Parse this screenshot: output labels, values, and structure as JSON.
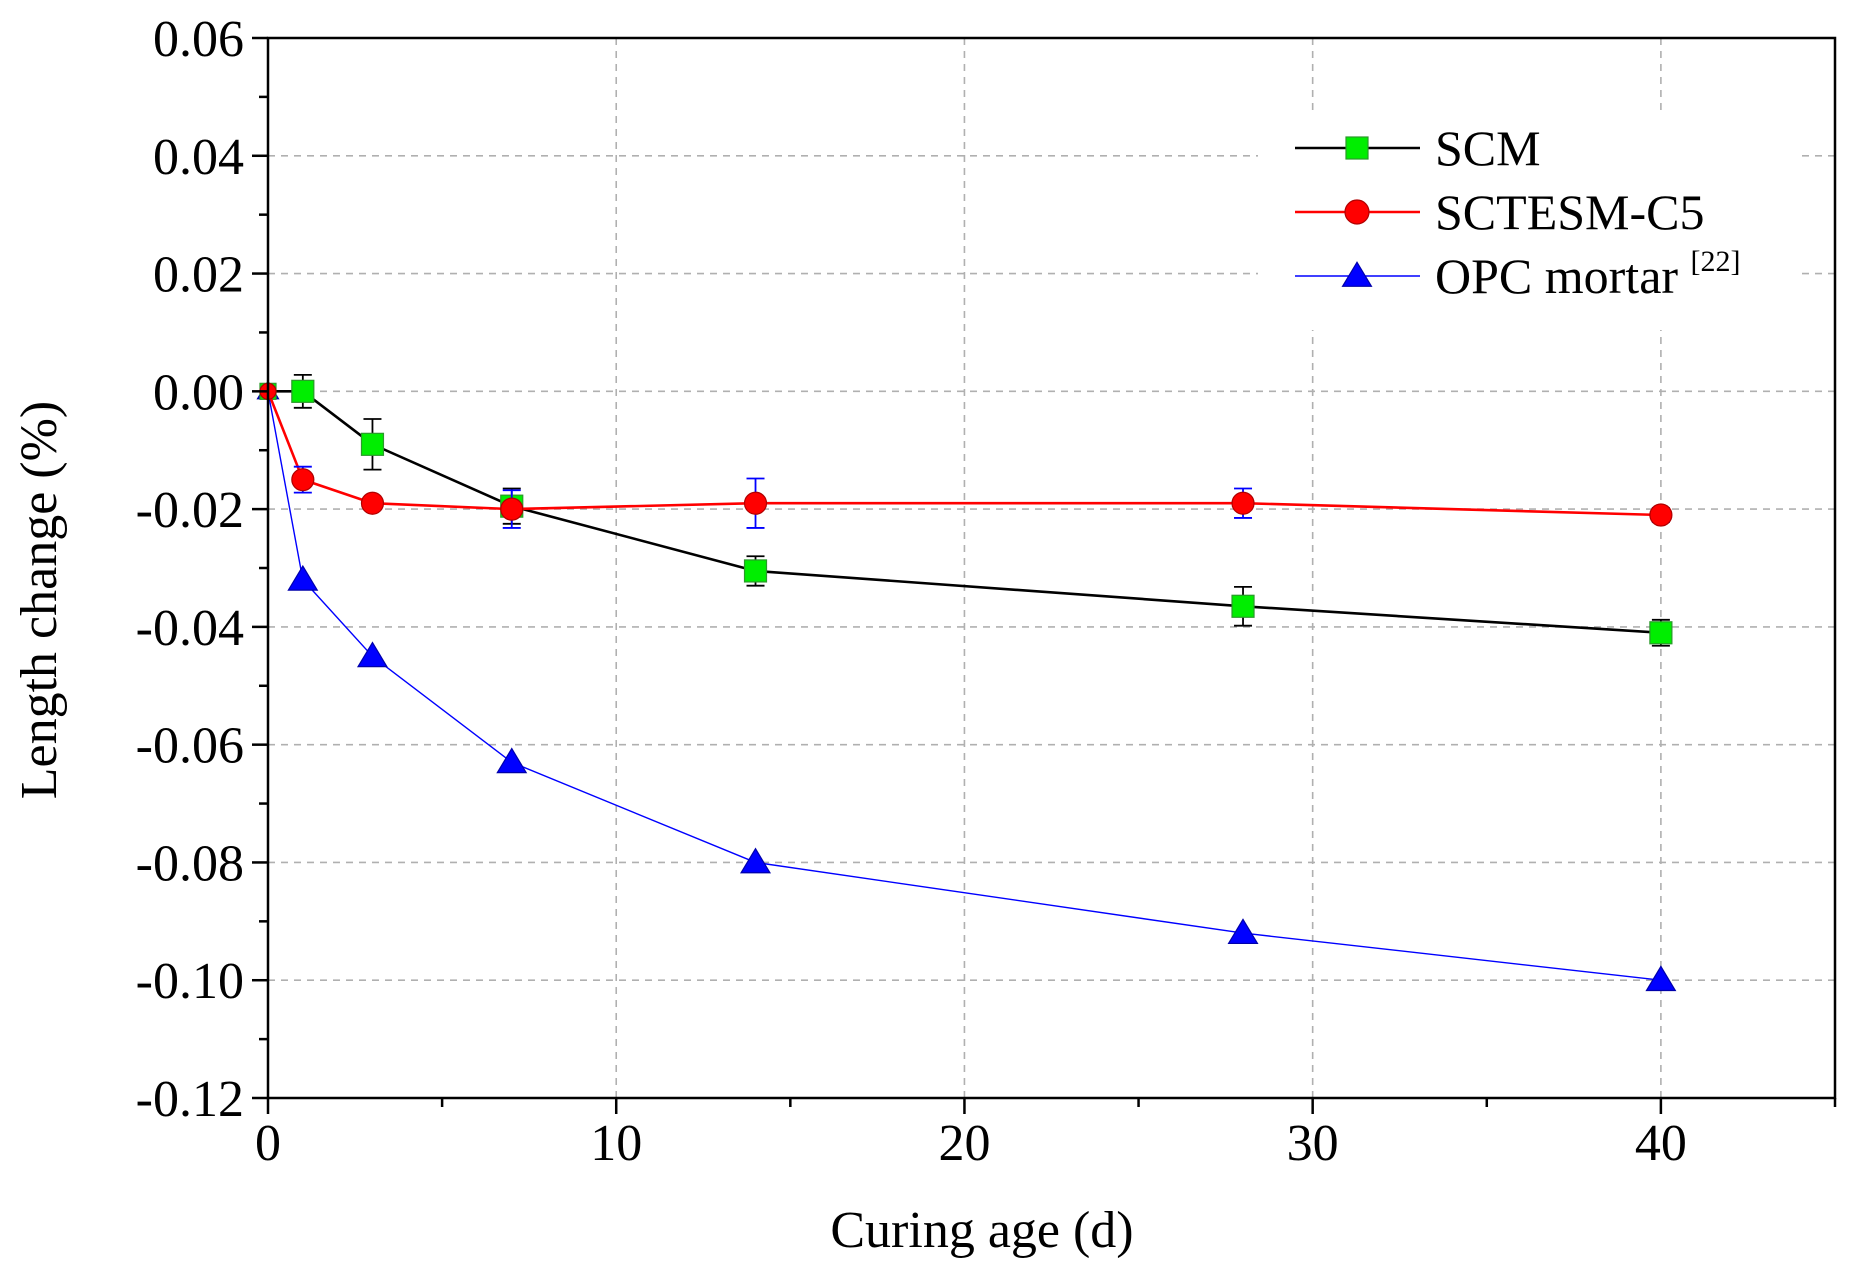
{
  "chart_data": {
    "type": "line",
    "title": "",
    "xlabel": "Curing age (d)",
    "ylabel": "Length change (%)",
    "xlim": [
      0,
      45
    ],
    "ylim": [
      -0.12,
      0.06
    ],
    "x_ticks": [
      0,
      10,
      20,
      30,
      40
    ],
    "x_tick_labels": [
      "0",
      "10",
      "20",
      "30",
      "40"
    ],
    "y_ticks": [
      -0.12,
      -0.1,
      -0.08,
      -0.06,
      -0.04,
      -0.02,
      0.0,
      0.02,
      0.04,
      0.06
    ],
    "y_tick_labels": [
      "-0.12",
      "-0.10",
      "-0.08",
      "-0.06",
      "-0.04",
      "-0.02",
      "0.00",
      "0.02",
      "0.04",
      "0.06"
    ],
    "grid": true,
    "legend_position": "top-right",
    "series": [
      {
        "name": "SCM",
        "color": "#000000",
        "marker_color": "#00ee00",
        "marker": "square",
        "x": [
          0,
          1,
          3,
          7,
          14,
          28,
          40
        ],
        "y": [
          0.0,
          0.0,
          -0.009,
          -0.0195,
          -0.0305,
          -0.0365,
          -0.041
        ],
        "err": [
          0,
          0.0028,
          0.0043,
          0.003,
          0.0025,
          0.0033,
          0.0022
        ]
      },
      {
        "name": "SCTESM-C5",
        "color": "#ff0000",
        "marker_color": "#ff0000",
        "marker": "circle",
        "x": [
          0,
          1,
          3,
          7,
          14,
          28,
          40
        ],
        "y": [
          0.0,
          -0.015,
          -0.019,
          -0.02,
          -0.019,
          -0.019,
          -0.021
        ],
        "err": [
          0,
          0.0022,
          0.001,
          0.0032,
          0.0042,
          0.0025,
          0.0012
        ]
      },
      {
        "name": "OPC mortar",
        "name_superscript": "[22]",
        "color": "#0000ff",
        "marker_color": "#0000ff",
        "marker": "triangle",
        "x": [
          0,
          1,
          3,
          7,
          14,
          28,
          40
        ],
        "y": [
          0.0,
          -0.032,
          -0.045,
          -0.063,
          -0.08,
          -0.092,
          -0.1
        ],
        "err": [
          0,
          0,
          0,
          0,
          0,
          0,
          0
        ]
      }
    ]
  }
}
